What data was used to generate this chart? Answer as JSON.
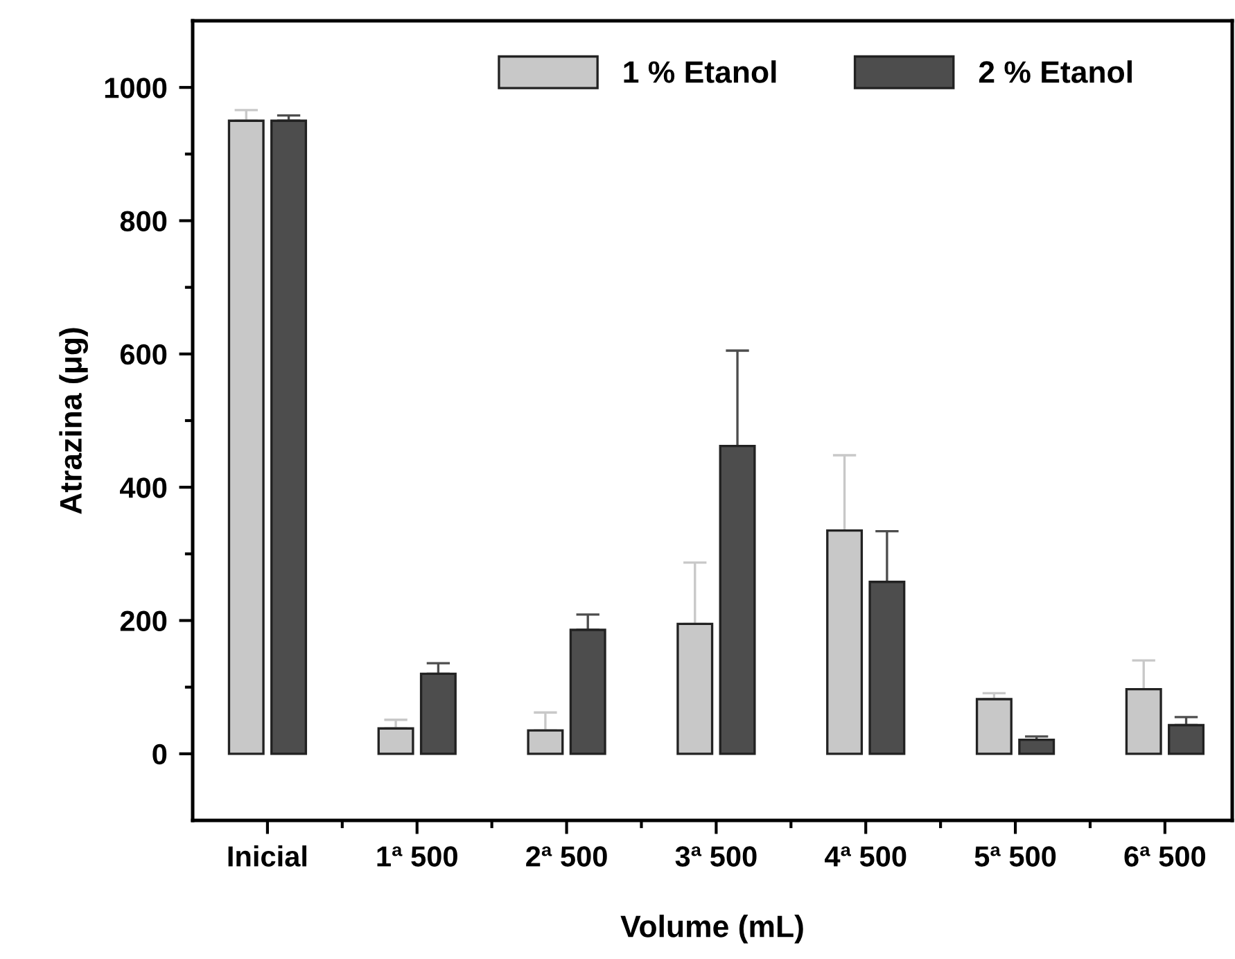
{
  "chart_data": {
    "type": "bar",
    "xlabel": "Volume (mL)",
    "ylabel": "Atrazina (μg)",
    "categories": [
      "Inicial",
      "1ª 500",
      "2ª 500",
      "3ª 500",
      "4ª 500",
      "5ª 500",
      "6ª 500"
    ],
    "series": [
      {
        "name": "1 % Etanol",
        "color": "#c8c8c8",
        "values": [
          950,
          38,
          35,
          195,
          335,
          82,
          97
        ],
        "errors": [
          [
            950,
            966
          ],
          [
            38,
            51
          ],
          [
            35,
            62
          ],
          [
            195,
            287
          ],
          [
            335,
            448
          ],
          [
            82,
            91
          ],
          [
            97,
            140
          ]
        ]
      },
      {
        "name": "2 % Etanol",
        "color": "#4d4d4d",
        "values": [
          950,
          120,
          186,
          462,
          258,
          21,
          43
        ],
        "errors": [
          [
            950,
            958
          ],
          [
            120,
            136
          ],
          [
            186,
            209
          ],
          [
            462,
            605
          ],
          [
            258,
            334
          ],
          [
            21,
            26
          ],
          [
            43,
            55
          ]
        ]
      }
    ],
    "ylim": [
      -100,
      1100
    ],
    "yticks": [
      0,
      {
        "value": 100,
        "label": null
      },
      200,
      {
        "value": 300,
        "label": null
      },
      400,
      {
        "value": 500,
        "label": null
      },
      600,
      {
        "value": 700,
        "label": null
      },
      800,
      {
        "value": 900,
        "label": null
      },
      1000
    ],
    "legend": "top",
    "grid": false
  }
}
